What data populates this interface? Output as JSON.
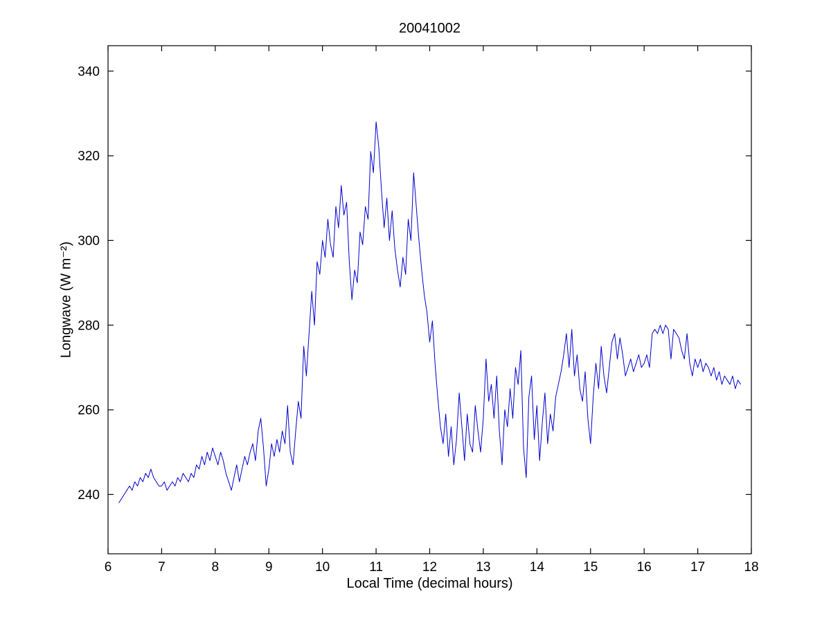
{
  "figure": {
    "background": "#ffffff",
    "axis_color": "#000000"
  },
  "chart_data": {
    "type": "line",
    "title": "20041002",
    "xlabel": "Local Time (decimal hours)",
    "ylabel": "Longwave (W m⁻²)",
    "xlim": [
      6,
      18
    ],
    "ylim": [
      226,
      346
    ],
    "xticks": [
      6,
      7,
      8,
      9,
      10,
      11,
      12,
      13,
      14,
      15,
      16,
      17,
      18
    ],
    "yticks": [
      240,
      260,
      280,
      300,
      320,
      340
    ],
    "grid": false,
    "legend": "none",
    "series": [
      {
        "name": "longwave",
        "color": "#0000CC",
        "x_start": 6.2,
        "x_step": 0.05,
        "values": [
          238,
          239,
          240,
          241,
          242,
          241,
          243,
          242,
          244,
          243,
          245,
          244,
          246,
          244,
          243,
          242,
          242,
          243,
          241,
          242,
          243,
          242,
          244,
          243,
          245,
          244,
          243,
          245,
          244,
          247,
          246,
          249,
          247,
          250,
          248,
          251,
          249,
          247,
          250,
          248,
          245,
          243,
          241,
          244,
          247,
          243,
          246,
          249,
          247,
          250,
          252,
          248,
          255,
          258,
          251,
          242,
          246,
          252,
          249,
          253,
          250,
          255,
          252,
          261,
          250,
          247,
          255,
          262,
          258,
          275,
          268,
          278,
          288,
          280,
          295,
          292,
          300,
          296,
          305,
          299,
          296,
          308,
          303,
          313,
          306,
          309,
          295,
          286,
          293,
          290,
          302,
          299,
          308,
          305,
          321,
          316,
          328,
          322,
          312,
          303,
          310,
          300,
          307,
          298,
          293,
          289,
          296,
          292,
          305,
          300,
          316,
          308,
          300,
          293,
          287,
          283,
          276,
          281,
          271,
          263,
          256,
          252,
          259,
          249,
          256,
          247,
          253,
          264,
          256,
          248,
          259,
          252,
          250,
          261,
          255,
          250,
          258,
          272,
          262,
          266,
          258,
          268,
          255,
          247,
          260,
          256,
          265,
          258,
          270,
          266,
          274,
          251,
          244,
          263,
          268,
          253,
          261,
          248,
          257,
          264,
          252,
          259,
          255,
          263,
          266,
          269,
          273,
          278,
          270,
          279,
          268,
          273,
          265,
          262,
          269,
          258,
          252,
          263,
          271,
          265,
          275,
          268,
          264,
          270,
          276,
          278,
          272,
          277,
          273,
          268,
          270,
          272,
          269,
          271,
          273,
          270,
          271,
          273,
          270,
          278,
          279,
          278,
          280,
          278,
          280,
          279,
          272,
          279,
          278,
          277,
          274,
          272,
          278,
          271,
          268,
          272,
          270,
          272,
          269,
          271,
          270,
          268,
          270,
          267,
          269,
          266,
          268,
          267,
          266,
          268,
          265,
          267,
          266
        ]
      }
    ]
  }
}
